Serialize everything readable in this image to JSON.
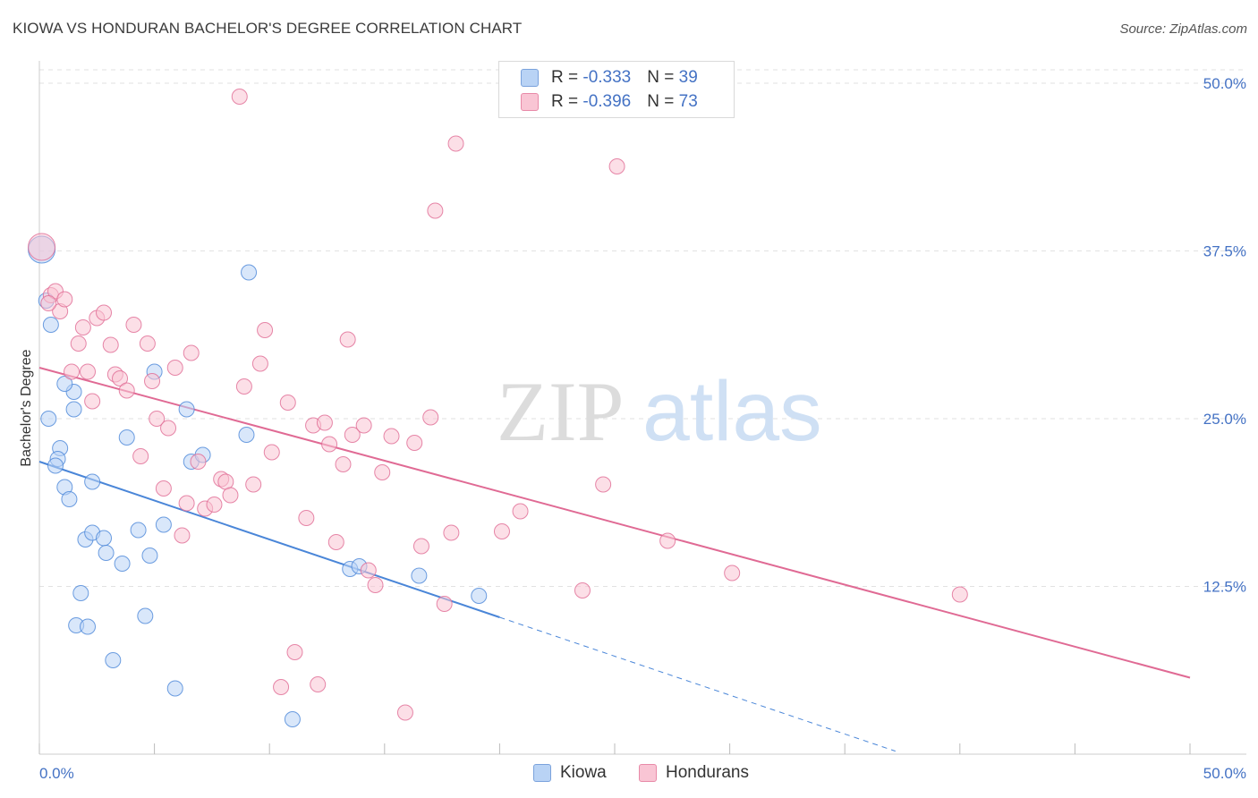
{
  "title": "KIOWA VS HONDURAN BACHELOR'S DEGREE CORRELATION CHART",
  "source": "Source: ZipAtlas.com",
  "watermark": {
    "zip": "ZIP",
    "atlas": "atlas"
  },
  "legend": {
    "series": [
      {
        "name": "Kiowa",
        "r_label": "R = ",
        "r_value": "-0.333",
        "n_label": "N = ",
        "n_value": "39",
        "color": "#7aa2dc"
      },
      {
        "name": "Hondurans",
        "r_label": "R = ",
        "r_value": "-0.396",
        "n_label": "N = ",
        "n_value": "73",
        "color": "#e88aa8"
      }
    ]
  },
  "chart_data": {
    "type": "scatter",
    "title": "KIOWA VS HONDURAN BACHELOR'S DEGREE CORRELATION CHART",
    "xlabel": "",
    "ylabel": "Bachelor's Degree",
    "xlim": [
      0,
      50
    ],
    "ylim": [
      0,
      51
    ],
    "x_tick_labels": [
      "0.0%",
      "50.0%"
    ],
    "y_tick_values": [
      12.5,
      25.0,
      37.5,
      50.0
    ],
    "y_tick_labels": [
      "12.5%",
      "25.0%",
      "37.5%",
      "50.0%"
    ],
    "grid": true,
    "legend_position": "top-center",
    "series": [
      {
        "name": "Kiowa",
        "color": "#4a86d8",
        "fill": "#b9d3f5",
        "trend": {
          "x0": 0,
          "y0": 21.8,
          "x1": 20,
          "y1": 10.2,
          "dashed_to_x": 37.2
        },
        "points": [
          [
            0.1,
            37.6
          ],
          [
            0.3,
            33.8
          ],
          [
            0.5,
            32.0
          ],
          [
            0.4,
            25.0
          ],
          [
            0.9,
            22.8
          ],
          [
            0.8,
            22.0
          ],
          [
            0.7,
            21.5
          ],
          [
            1.1,
            19.9
          ],
          [
            1.3,
            19.0
          ],
          [
            1.5,
            25.7
          ],
          [
            1.5,
            27.0
          ],
          [
            1.1,
            27.6
          ],
          [
            1.6,
            9.6
          ],
          [
            1.8,
            12.0
          ],
          [
            2.0,
            16.0
          ],
          [
            2.1,
            9.5
          ],
          [
            2.3,
            20.3
          ],
          [
            2.3,
            16.5
          ],
          [
            2.8,
            16.1
          ],
          [
            2.9,
            15.0
          ],
          [
            3.2,
            7.0
          ],
          [
            3.6,
            14.2
          ],
          [
            3.8,
            23.6
          ],
          [
            4.3,
            16.7
          ],
          [
            4.6,
            10.3
          ],
          [
            4.8,
            14.8
          ],
          [
            5.0,
            28.5
          ],
          [
            5.4,
            17.1
          ],
          [
            5.9,
            4.9
          ],
          [
            6.4,
            25.7
          ],
          [
            6.6,
            21.8
          ],
          [
            7.1,
            22.3
          ],
          [
            9.0,
            23.8
          ],
          [
            9.1,
            35.9
          ],
          [
            11.0,
            2.6
          ],
          [
            13.5,
            13.8
          ],
          [
            13.9,
            14.0
          ],
          [
            16.5,
            13.3
          ],
          [
            19.1,
            11.8
          ]
        ]
      },
      {
        "name": "Hondurans",
        "color": "#e06a94",
        "fill": "#f9c5d4",
        "trend": {
          "x0": 0,
          "y0": 28.8,
          "x1": 50,
          "y1": 5.7
        },
        "points": [
          [
            0.1,
            37.8
          ],
          [
            0.5,
            34.2
          ],
          [
            0.7,
            34.5
          ],
          [
            0.9,
            33.0
          ],
          [
            1.1,
            33.9
          ],
          [
            1.4,
            28.5
          ],
          [
            1.7,
            30.6
          ],
          [
            1.9,
            31.8
          ],
          [
            2.1,
            28.5
          ],
          [
            2.3,
            26.3
          ],
          [
            2.5,
            32.5
          ],
          [
            2.8,
            32.9
          ],
          [
            3.1,
            30.5
          ],
          [
            3.3,
            28.3
          ],
          [
            3.5,
            28.0
          ],
          [
            3.8,
            27.1
          ],
          [
            4.1,
            32.0
          ],
          [
            4.4,
            22.2
          ],
          [
            4.7,
            30.6
          ],
          [
            4.9,
            27.8
          ],
          [
            5.1,
            25.0
          ],
          [
            5.4,
            19.8
          ],
          [
            5.6,
            24.3
          ],
          [
            5.9,
            28.8
          ],
          [
            6.2,
            16.3
          ],
          [
            6.4,
            18.7
          ],
          [
            6.6,
            29.9
          ],
          [
            6.9,
            21.8
          ],
          [
            7.2,
            18.3
          ],
          [
            7.6,
            18.6
          ],
          [
            7.9,
            20.5
          ],
          [
            8.1,
            20.3
          ],
          [
            8.3,
            19.3
          ],
          [
            8.7,
            49.0
          ],
          [
            8.9,
            27.4
          ],
          [
            9.3,
            20.1
          ],
          [
            9.6,
            29.1
          ],
          [
            9.8,
            31.6
          ],
          [
            10.1,
            22.5
          ],
          [
            10.5,
            5.0
          ],
          [
            10.8,
            26.2
          ],
          [
            11.1,
            7.6
          ],
          [
            11.6,
            17.6
          ],
          [
            11.9,
            24.5
          ],
          [
            12.1,
            5.2
          ],
          [
            12.4,
            24.7
          ],
          [
            12.6,
            23.1
          ],
          [
            12.9,
            15.8
          ],
          [
            13.2,
            21.6
          ],
          [
            13.4,
            30.9
          ],
          [
            13.6,
            23.8
          ],
          [
            14.1,
            24.5
          ],
          [
            14.3,
            13.7
          ],
          [
            14.6,
            12.6
          ],
          [
            14.9,
            21.0
          ],
          [
            15.3,
            23.7
          ],
          [
            15.9,
            3.1
          ],
          [
            16.3,
            23.2
          ],
          [
            16.6,
            15.5
          ],
          [
            17.0,
            25.1
          ],
          [
            17.2,
            40.5
          ],
          [
            17.6,
            11.2
          ],
          [
            17.9,
            16.5
          ],
          [
            18.1,
            45.5
          ],
          [
            20.1,
            16.6
          ],
          [
            20.9,
            18.1
          ],
          [
            23.6,
            12.2
          ],
          [
            24.5,
            20.1
          ],
          [
            25.1,
            43.8
          ],
          [
            27.3,
            15.9
          ],
          [
            30.1,
            13.5
          ],
          [
            40.0,
            11.9
          ],
          [
            0.4,
            33.6
          ]
        ]
      }
    ]
  }
}
